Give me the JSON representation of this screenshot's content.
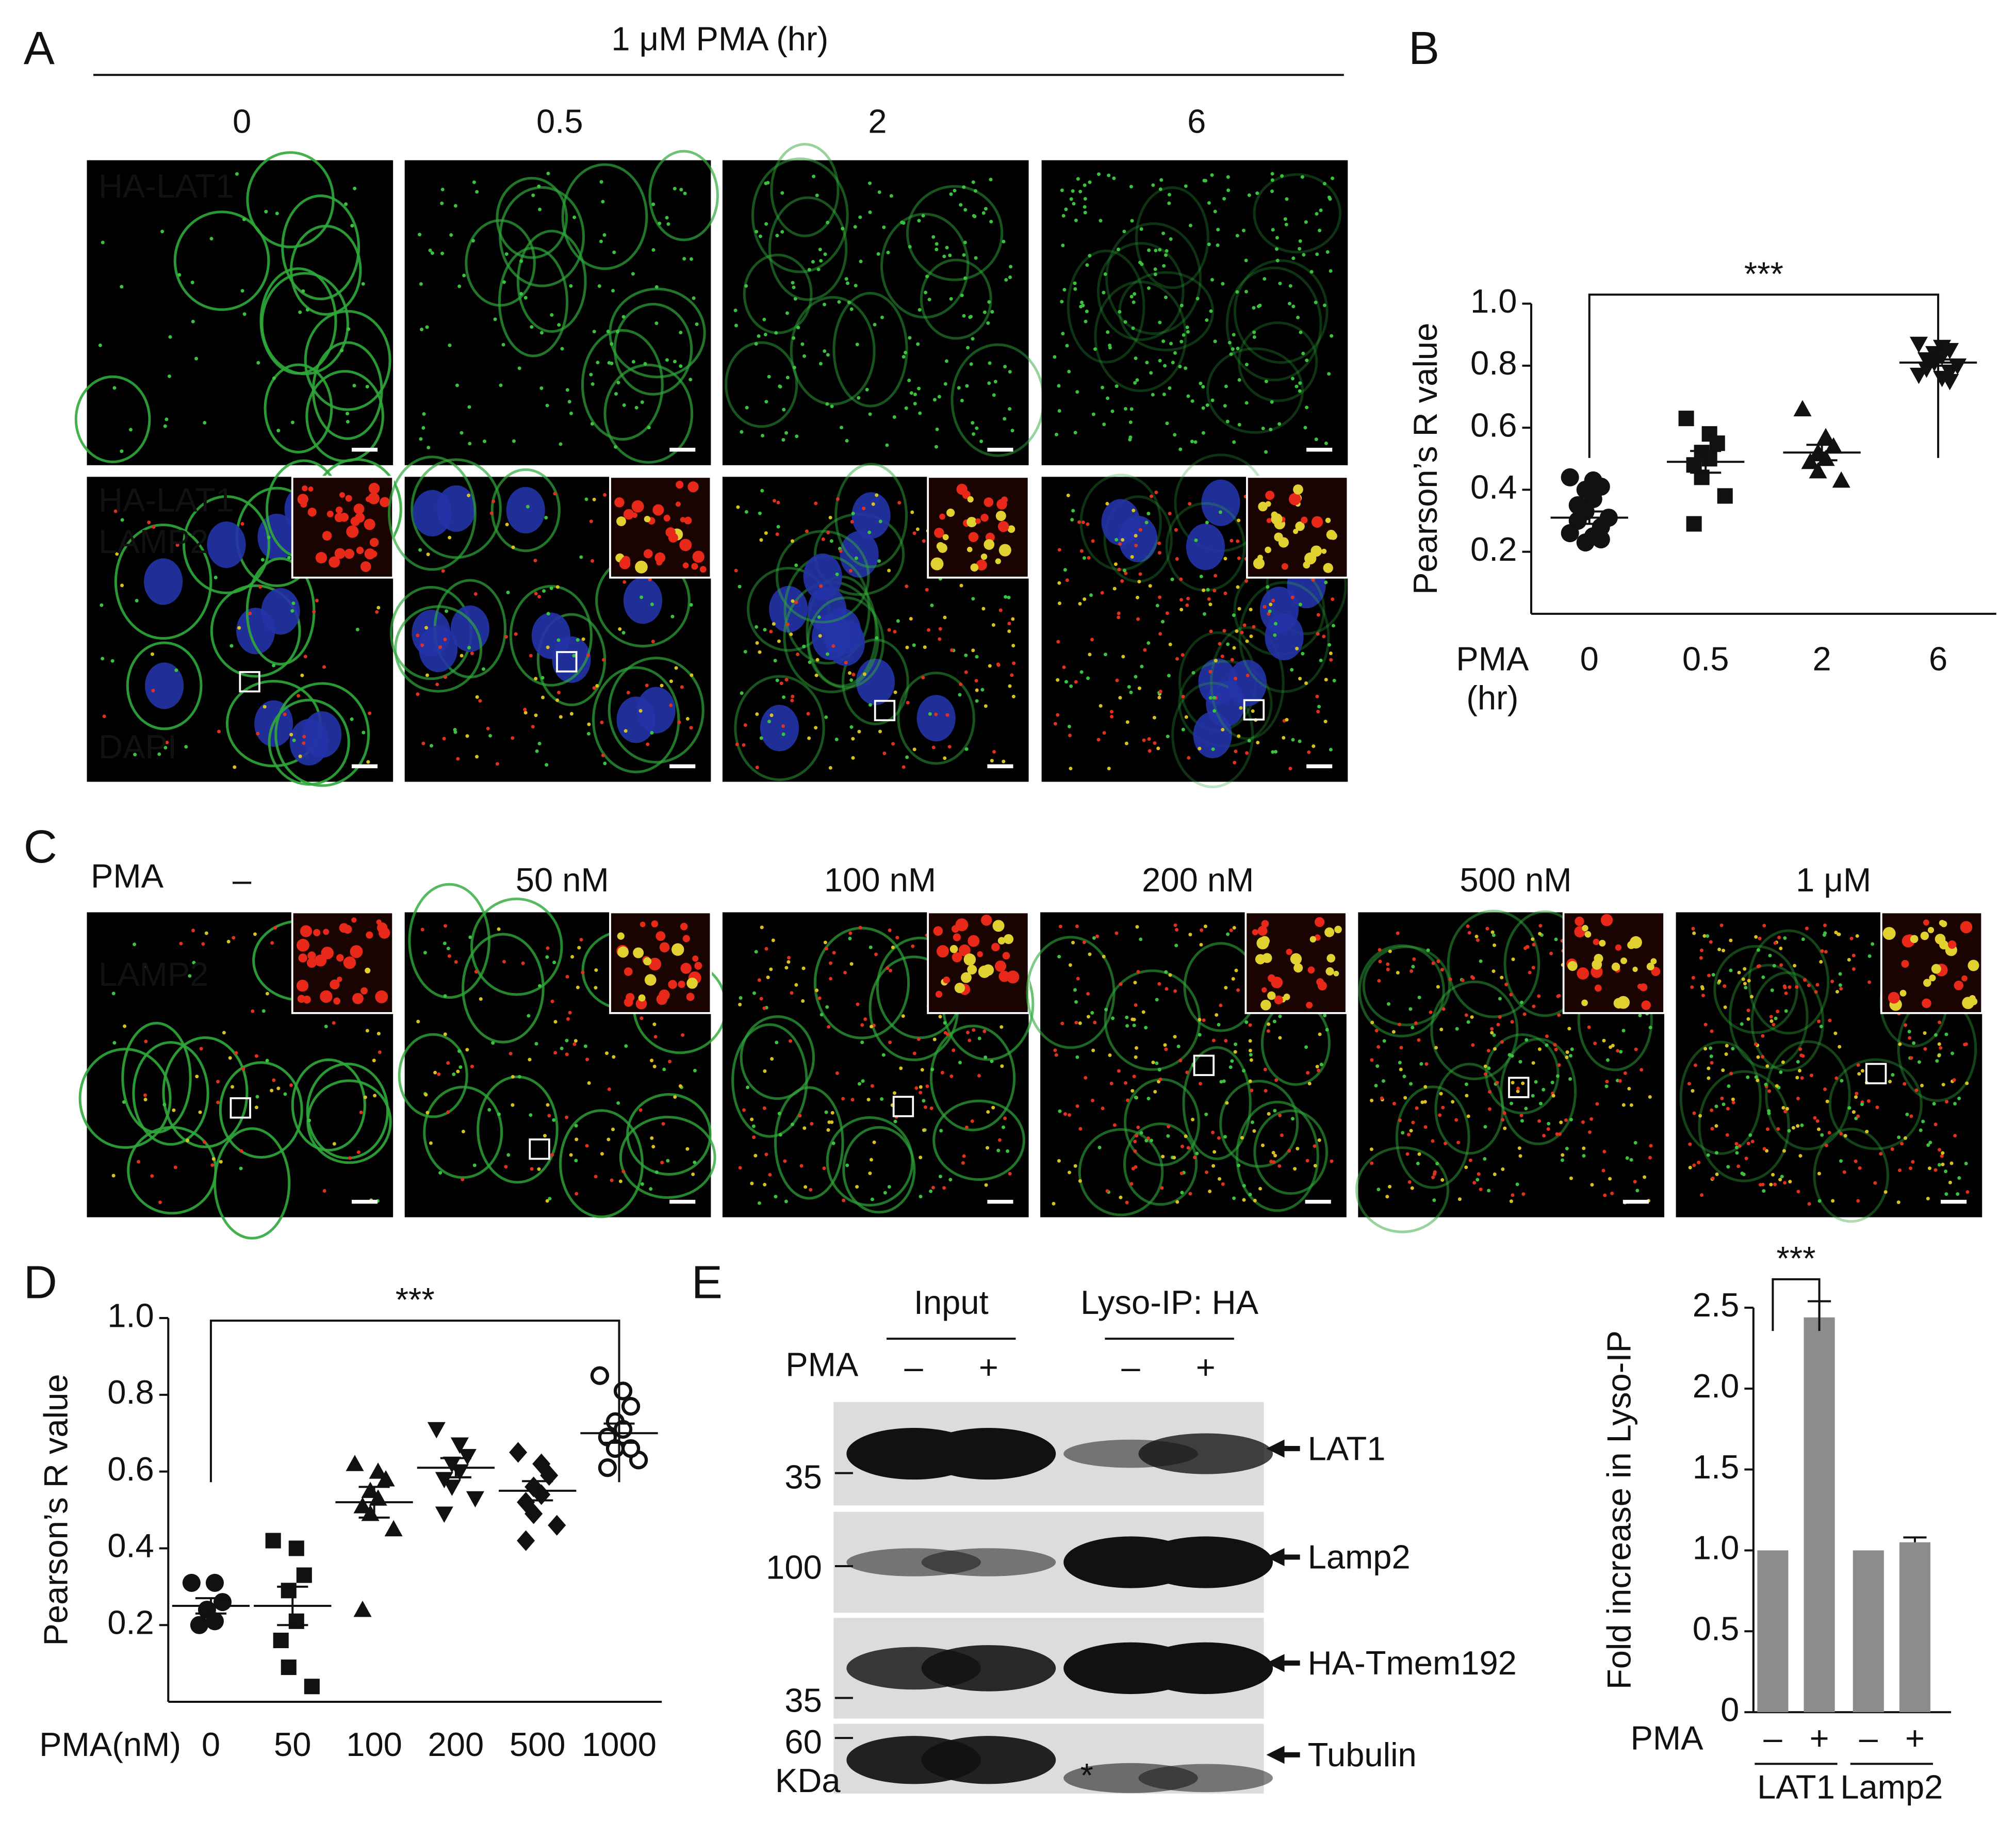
{
  "figure": {
    "panel_labels": [
      "A",
      "B",
      "C",
      "D",
      "E"
    ],
    "panel_a": {
      "header": "1 μM PMA (hr)",
      "columns": [
        "0",
        "0.5",
        "2",
        "6"
      ],
      "channel_labels_top": [
        "HA-LAT1"
      ],
      "channel_labels_bottom": [
        "HA-LAT1",
        "LAMP2",
        "DAPI"
      ]
    },
    "panel_c": {
      "row_label": "PMA",
      "columns": [
        "–",
        "50 nM",
        "100 nM",
        "200 nM",
        "500 nM",
        "1 μM"
      ],
      "channel_label": "LAMP2"
    },
    "panel_e_blot": {
      "headings": [
        "Input",
        "Lyso-IP: HA"
      ],
      "pma_label": "PMA",
      "lanes": [
        "–",
        "+",
        "–",
        "+"
      ],
      "bands": [
        "LAT1",
        "Lamp2",
        "HA-Tmem192",
        "Tubulin"
      ],
      "markers": [
        "35",
        "100",
        "35",
        "60"
      ],
      "unit": "KDa",
      "note": "*"
    }
  },
  "chart_data": [
    {
      "type": "strip",
      "y_label": "Pearson’s R value",
      "x_label": [
        "PMA",
        "(hr)"
      ],
      "categories": [
        "0",
        "0.5",
        "2",
        "6"
      ],
      "markers": [
        "circle",
        "square",
        "triangle",
        "triangle-down"
      ],
      "points": [
        [
          0.44,
          0.43,
          0.41,
          0.4,
          0.37,
          0.35,
          0.33,
          0.31,
          0.3,
          0.28,
          0.26,
          0.25,
          0.24,
          0.23
        ],
        [
          0.63,
          0.58,
          0.55,
          0.52,
          0.5,
          0.48,
          0.44,
          0.38,
          0.29
        ],
        [
          0.66,
          0.57,
          0.54,
          0.52,
          0.5,
          0.49,
          0.46,
          0.43
        ],
        [
          0.87,
          0.86,
          0.85,
          0.84,
          0.83,
          0.82,
          0.81,
          0.8,
          0.79,
          0.78,
          0.77,
          0.76,
          0.75
        ]
      ],
      "means": [
        0.31,
        0.49,
        0.52,
        0.81
      ],
      "sem": [
        0.02,
        0.035,
        0.025,
        0.01
      ],
      "ylim": [
        0,
        1
      ],
      "yticks": [
        0.2,
        0.4,
        0.6,
        0.8,
        {
          "value": 1,
          "label": "1.0"
        }
      ],
      "significance": {
        "label": "***",
        "from": 0,
        "to": 3
      }
    },
    {
      "type": "strip",
      "y_label": "Pearson’s R value",
      "x_label": "PMA(nM)",
      "categories": [
        "0",
        "50",
        "100",
        "200",
        "500",
        "1000"
      ],
      "markers": [
        "circle",
        "square",
        "triangle",
        "triangle-down",
        "diamond",
        "circle-open"
      ],
      "points": [
        [
          0.31,
          0.31,
          0.26,
          0.24,
          0.21,
          0.2
        ],
        [
          0.42,
          0.4,
          0.33,
          0.29,
          0.21,
          0.16,
          0.09,
          0.04
        ],
        [
          0.62,
          0.6,
          0.58,
          0.55,
          0.53,
          0.51,
          0.49,
          0.45,
          0.24
        ],
        [
          0.71,
          0.67,
          0.64,
          0.62,
          0.6,
          0.58,
          0.56,
          0.53,
          0.49
        ],
        [
          0.65,
          0.62,
          0.59,
          0.56,
          0.54,
          0.52,
          0.49,
          0.46,
          0.42
        ],
        [
          0.85,
          0.81,
          0.77,
          0.73,
          0.71,
          0.69,
          0.66,
          0.63,
          0.61,
          0.66
        ]
      ],
      "means": [
        0.25,
        0.25,
        0.52,
        0.61,
        0.55,
        0.7
      ],
      "sem": [
        0.02,
        0.05,
        0.04,
        0.025,
        0.025,
        0.025
      ],
      "ylim": [
        0,
        1
      ],
      "yticks": [
        0.2,
        0.4,
        0.6,
        0.8,
        {
          "value": 1,
          "label": "1.0"
        }
      ],
      "significance": {
        "label": "***",
        "from": 0,
        "to": 5
      }
    },
    {
      "type": "bar",
      "y_label": "Fold increase in Lyso-IP",
      "x_label": "PMA",
      "categories": [
        "–",
        "+",
        "–",
        "+"
      ],
      "groups": [
        "LAT1",
        "Lamp2"
      ],
      "values": [
        1,
        2.44,
        1,
        1.05
      ],
      "errors": [
        0,
        0.1,
        0,
        0.03
      ],
      "color": "#8c8c8c",
      "ylim": [
        0,
        2.5
      ],
      "yticks": [
        0,
        0.5,
        {
          "value": 1,
          "label": "1.0"
        },
        1.5,
        {
          "value": 2,
          "label": "2.0"
        },
        2.5
      ],
      "significance": {
        "label": "***",
        "from": 0,
        "to": 1
      }
    }
  ]
}
